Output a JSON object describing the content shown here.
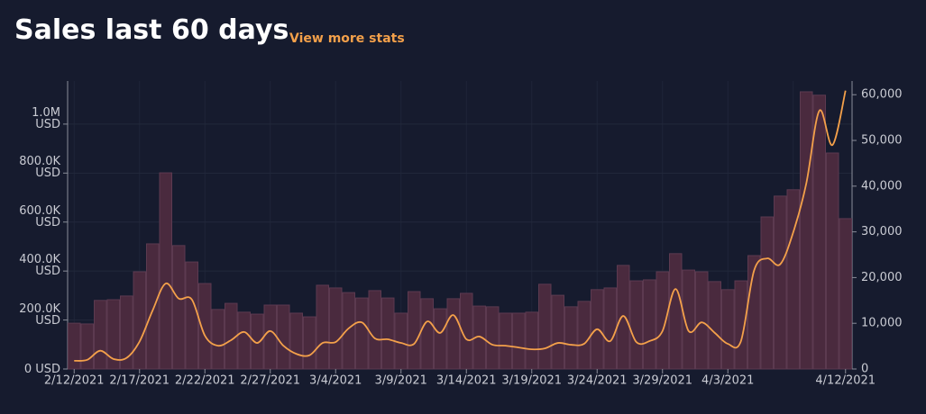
{
  "header": {
    "title": "Sales last 60 days",
    "link": "View more stats"
  },
  "chart_data": {
    "type": "bar-line",
    "categories": [
      "2/12/2021",
      null,
      null,
      null,
      null,
      "2/17/2021",
      null,
      null,
      null,
      null,
      "2/22/2021",
      null,
      null,
      null,
      null,
      "2/27/2021",
      null,
      null,
      null,
      null,
      "3/4/2021",
      null,
      null,
      null,
      null,
      "3/9/2021",
      null,
      null,
      null,
      null,
      "3/14/2021",
      null,
      null,
      null,
      null,
      "3/19/2021",
      null,
      null,
      null,
      null,
      "3/24/2021",
      null,
      null,
      null,
      null,
      "3/29/2021",
      null,
      null,
      null,
      null,
      "4/3/2021",
      null,
      null,
      null,
      null,
      null,
      null,
      null,
      null,
      "4/12/2021"
    ],
    "series": [
      {
        "color": "#4a2a3e",
        "values": [
          187000,
          184000,
          280000,
          283000,
          298000,
          397000,
          511000,
          801000,
          504000,
          437000,
          349000,
          243000,
          268000,
          232000,
          224000,
          261000,
          261000,
          228000,
          213000,
          342000,
          331000,
          312000,
          290000,
          320000,
          290000,
          228000,
          316000,
          287000,
          246000,
          287000,
          309000,
          257000,
          254000,
          228000,
          228000,
          232000,
          346000,
          301000,
          254000,
          276000,
          324000,
          331000,
          423000,
          360000,
          364000,
          397000,
          471000,
          404000,
          397000,
          357000,
          324000,
          360000,
          463000,
          621000,
          706000,
          732000,
          1132000,
          1118000,
          882000,
          614000
        ]
      },
      {
        "color": "#f3a04a",
        "axis": "y2",
        "values": [
          1800,
          2000,
          4000,
          2200,
          2400,
          6000,
          12800,
          18700,
          15400,
          15200,
          7300,
          5100,
          6300,
          8100,
          5700,
          8300,
          5100,
          3300,
          3000,
          5700,
          5900,
          8900,
          10200,
          6700,
          6500,
          5700,
          5500,
          10400,
          7900,
          11800,
          6500,
          7100,
          5300,
          5100,
          4700,
          4300,
          4500,
          5700,
          5300,
          5500,
          8700,
          6100,
          11600,
          5900,
          6100,
          8300,
          17500,
          8300,
          10200,
          7900,
          5500,
          6100,
          21500,
          24200,
          22900,
          29900,
          40600,
          56500,
          49000,
          60900
        ]
      }
    ],
    "ylim": [
      0,
      1176000
    ],
    "yticks": [
      {
        "value": 0,
        "label": "0 USD"
      },
      {
        "value": 200000,
        "label": "200.0K USD"
      },
      {
        "value": 400000,
        "label": "400.0K USD"
      },
      {
        "value": 600000,
        "label": "600.0K USD"
      },
      {
        "value": 800000,
        "label": "800.0K USD"
      },
      {
        "value": 1000000,
        "label": "1.0M USD"
      }
    ],
    "y2lim": [
      0,
      63000
    ],
    "y2ticks": [
      0,
      {
        "value": 10000,
        "label": "10,000"
      },
      {
        "value": 20000,
        "label": "20,000"
      },
      {
        "value": 30000,
        "label": "30,000"
      },
      {
        "value": 40000,
        "label": "40,000"
      },
      {
        "value": 50000,
        "label": "50,000"
      },
      {
        "value": 60000,
        "label": "60,000"
      }
    ],
    "grid": true
  }
}
